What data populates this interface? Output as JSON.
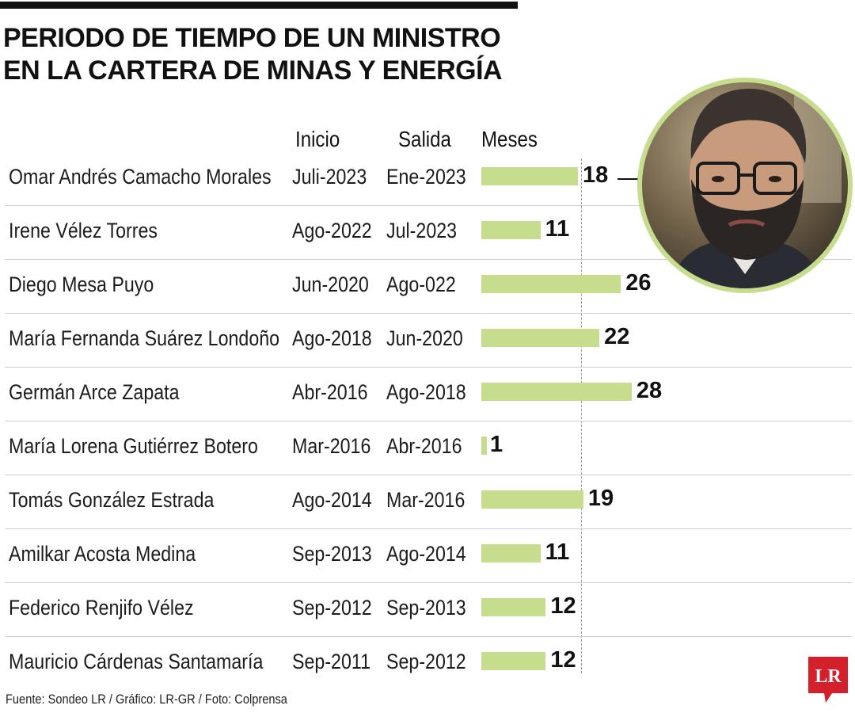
{
  "title_lines": [
    "PERIODO DE TIEMPO DE UN MINISTRO",
    "EN LA CARTERA DE MINAS Y ENERGÍA"
  ],
  "columns": {
    "inicio": "Inicio",
    "salida": "Salida",
    "meses": "Meses"
  },
  "source": "Fuente: Sondeo LR / Gráfico: LR-GR / Foto: Colprensa",
  "logo_text": "LR",
  "colors": {
    "bar": "#c5dd8c",
    "photo_ring": "#c5dd8c",
    "logo": "#d4202a"
  },
  "chart_data": {
    "type": "bar",
    "orientation": "horizontal",
    "categories": [
      "Omar Andrés Camacho Morales",
      "Irene Vélez Torres",
      "Diego Mesa Puyo",
      "María Fernanda Suárez Londoño",
      "Germán Arce Zapata",
      "María Lorena Gutiérrez Botero",
      "Tomás González Estrada",
      "Amilkar Acosta Medina",
      "Federico Renjifo Vélez",
      "Mauricio Cárdenas Santamaría"
    ],
    "inicio": [
      "Juli-2023",
      "Ago-2022",
      "Jun-2020",
      "Ago-2018",
      "Abr-2016",
      "Mar-2016",
      "Ago-2014",
      "Sep-2013",
      "Sep-2012",
      "Sep-2011"
    ],
    "salida": [
      "Ene-2023",
      "Jul-2023",
      "Ago-022",
      "Jun-2020",
      "Ago-2018",
      "Abr-2016",
      "Mar-2016",
      "Ago-2014",
      "Sep-2013",
      "Sep-2012"
    ],
    "values": [
      18,
      11,
      26,
      22,
      28,
      1,
      19,
      11,
      12,
      12
    ],
    "highlighted_value": 18,
    "xlim": [
      0,
      28
    ],
    "grid": false,
    "legend": "none"
  }
}
